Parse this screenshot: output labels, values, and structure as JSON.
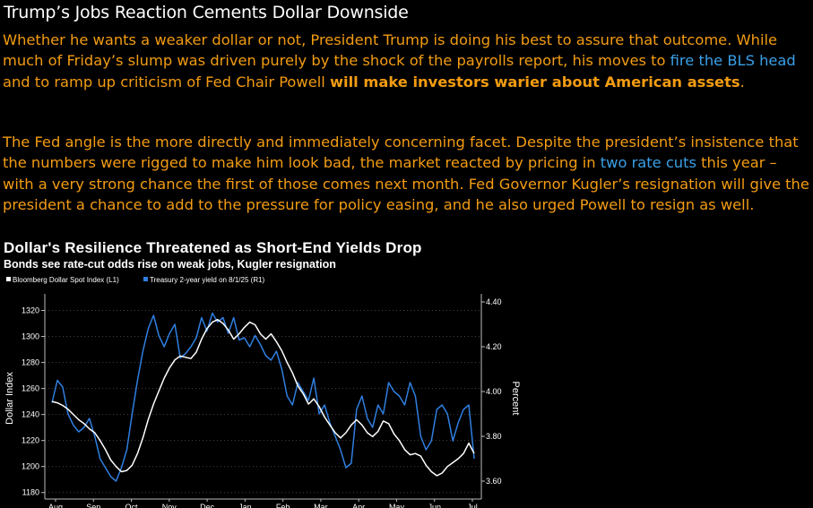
{
  "article": {
    "headline": "Trump’s Jobs Reaction Cements Dollar Downside",
    "para1": {
      "t1": "Whether he wants a weaker dollar or not, President Trump is doing his best to assure that outcome. While much of Friday’s slump was driven purely by the shock of the payrolls report, his moves to ",
      "link": "fire the BLS head",
      "t2": " and to ramp up criticism of Fed Chair Powell ",
      "bold": "will make investors warier about American assets",
      "t3": "."
    },
    "para2": {
      "t1": "The Fed angle is the more directly and immediately concerning facet. Despite the president’s insistence that the numbers were rigged to make him look bad, the market reacted by pricing in ",
      "link": "two rate cuts",
      "t2": " this year – with a very strong chance the first of those comes next month. Fed Governor Kugler’s resignation will give the president a chance to add to the pressure for policy easing, and he also urged Powell to resign as well."
    }
  },
  "colors": {
    "text": "#f39c12",
    "link": "#3aa0e8",
    "dollar": "#ffffff",
    "yield": "#2f7fe0"
  },
  "chart_data": {
    "type": "line",
    "title": "Dollar's Resilience Threatened as Short-End Yields Drop",
    "subtitle": "Bonds see rate-cut odds rise on weak jobs, Kugler resignation",
    "ylabel": "Dollar Index",
    "y2label": "Percent",
    "ylim": [
      1175,
      1330
    ],
    "y2lim": [
      3.52,
      4.42
    ],
    "yticks": [
      "1320",
      "1300",
      "1280",
      "1260",
      "1240",
      "1220",
      "1200",
      "1180"
    ],
    "y2ticks": [
      "4.40",
      "4.20",
      "4.00",
      "3.80",
      "3.60"
    ],
    "xticks": [
      "Aug",
      "Sep",
      "Oct",
      "Nov",
      "Dec",
      "Jan",
      "Feb",
      "Mar",
      "Apr",
      "May",
      "Jun",
      "Jul"
    ],
    "series": [
      {
        "name": "Bloomberg Dollar Spot Index (L1)",
        "axis": "left",
        "values": [
          1250,
          1249,
          1247,
          1244,
          1240,
          1236,
          1233,
          1229,
          1226,
          1220,
          1213,
          1205,
          1200,
          1196,
          1197,
          1201,
          1210,
          1222,
          1236,
          1248,
          1258,
          1268,
          1276,
          1282,
          1285,
          1284,
          1283,
          1288,
          1298,
          1306,
          1311,
          1313,
          1310,
          1305,
          1298,
          1302,
          1307,
          1311,
          1309,
          1302,
          1298,
          1302,
          1296,
          1289,
          1280,
          1272,
          1262,
          1256,
          1248,
          1252,
          1246,
          1238,
          1232,
          1226,
          1222,
          1226,
          1232,
          1236,
          1232,
          1226,
          1223,
          1227,
          1235,
          1233,
          1225,
          1220,
          1213,
          1209,
          1210,
          1208,
          1201,
          1196,
          1193,
          1195,
          1200,
          1203,
          1206,
          1210,
          1218,
          1210
        ]
      },
      {
        "name": "Treasury 2-year yield on 8/1/25 (R1)",
        "axis": "right",
        "values": [
          3.95,
          4.05,
          4.02,
          3.9,
          3.85,
          3.82,
          3.84,
          3.88,
          3.8,
          3.7,
          3.66,
          3.62,
          3.6,
          3.66,
          3.74,
          3.9,
          4.05,
          4.18,
          4.28,
          4.34,
          4.25,
          4.2,
          4.26,
          4.3,
          4.15,
          4.17,
          4.2,
          4.24,
          4.33,
          4.27,
          4.35,
          4.31,
          4.33,
          4.26,
          4.33,
          4.23,
          4.24,
          4.2,
          4.25,
          4.21,
          4.16,
          4.14,
          4.18,
          4.1,
          3.98,
          3.94,
          4.04,
          4.0,
          3.96,
          4.06,
          3.9,
          3.94,
          3.86,
          3.8,
          3.74,
          3.66,
          3.68,
          3.92,
          3.98,
          3.88,
          3.84,
          3.94,
          3.9,
          4.04,
          4.0,
          3.98,
          3.94,
          4.04,
          3.98,
          3.8,
          3.74,
          3.78,
          3.92,
          3.94,
          3.9,
          3.78,
          3.86,
          3.92,
          3.94,
          3.7
        ]
      }
    ]
  }
}
